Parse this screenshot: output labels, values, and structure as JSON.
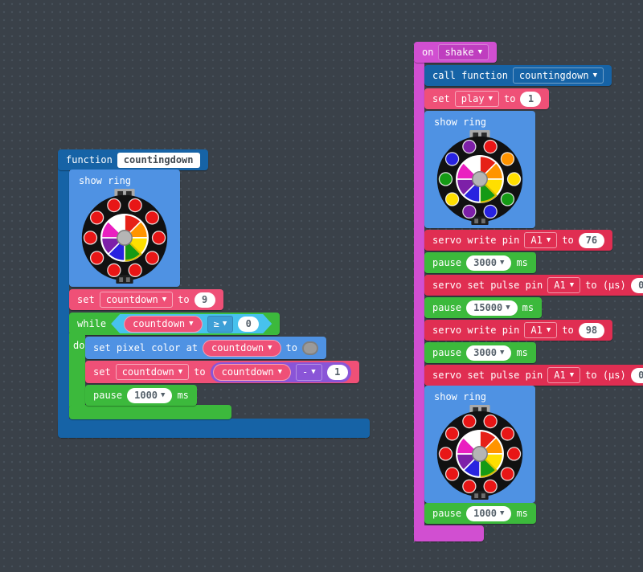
{
  "colors": {
    "function_blue": "#1663a6",
    "light_blue": "#4f92e3",
    "variables_pink": "#ef5077",
    "loops_green": "#3cb93c",
    "logic_cyan": "#47c2ee",
    "logic_dd_cyan": "#3d9fd6",
    "math_purple": "#8a55d7",
    "servo_crimson": "#e02e52",
    "input_magenta": "#d14fd1",
    "input_dd_magenta": "#bf3ebf"
  },
  "left_stack": {
    "function_def": {
      "keyword": "function",
      "name": "countingdown"
    },
    "show_ring": {
      "label": "show ring"
    },
    "set_countdown": {
      "set": "set",
      "var": "countdown",
      "to": "to",
      "value": "9"
    },
    "while_block": {
      "keyword": "while",
      "do_label": "do",
      "condition": {
        "var": "countdown",
        "op": "≥",
        "value": "0"
      }
    },
    "set_pixel": {
      "label": "set pixel color at",
      "var": "countdown",
      "to": "to"
    },
    "set_countdown_expr": {
      "set": "set",
      "var": "countdown",
      "to": "to",
      "expr": {
        "var": "countdown",
        "op": "-",
        "value": "1"
      }
    },
    "pause": {
      "label": "pause",
      "value": "1000",
      "unit": "ms"
    }
  },
  "right_stack": {
    "on_shake": {
      "keyword": "on",
      "event": "shake"
    },
    "call_function": {
      "label": "call function",
      "name": "countingdown"
    },
    "set_play": {
      "set": "set",
      "var": "play",
      "to": "to",
      "value": "1"
    },
    "servo_write_1": {
      "label": "servo write pin",
      "pin": "A1",
      "to": "to",
      "value": "76"
    },
    "pause_1": {
      "label": "pause",
      "value": "3000",
      "unit": "ms"
    },
    "servo_pulse_1": {
      "label": "servo set pulse pin",
      "pin": "A1",
      "to": "to (µs)",
      "value": "0"
    },
    "pause_2": {
      "label": "pause",
      "value": "15000",
      "unit": "ms"
    },
    "servo_write_2": {
      "label": "servo write pin",
      "pin": "A1",
      "to": "to",
      "value": "98"
    },
    "pause_3": {
      "label": "pause",
      "value": "3000",
      "unit": "ms"
    },
    "servo_pulse_2": {
      "label": "servo set pulse pin",
      "pin": "A1",
      "to": "to (µs)",
      "value": "0"
    },
    "pause_4": {
      "label": "pause",
      "value": "1000",
      "unit": "ms"
    }
  },
  "rings": {
    "board_color": "#111111",
    "hub_color": "#b5b5b5",
    "highlight_color": "#d8c000",
    "wheel_highlight_index": 3,
    "wheel_colors": [
      "#e62117",
      "#ff9400",
      "#ffdf00",
      "#159a15",
      "#2823e0",
      "#7d20a8",
      "#ea1fc0",
      "#ffffff"
    ],
    "instances": {
      "left": {
        "label": "show ring",
        "leds": [
          "#e81616",
          "#e81616",
          "#e81616",
          "#e81616",
          "#e81616",
          "#e81616",
          "#e81616",
          "#e81616",
          "#e81616",
          "#e81616"
        ]
      },
      "right_top": {
        "label": "show ring",
        "leds": [
          "#e81616",
          "#ff9400",
          "#ffdf00",
          "#159a15",
          "#2823e0",
          "#7d20a8",
          "#ffdf00",
          "#159a15",
          "#2823e0",
          "#7d20a8"
        ]
      },
      "right_bottom": {
        "label": "show ring",
        "leds": [
          "#e81616",
          "#e81616",
          "#e81616",
          "#e81616",
          "#e81616",
          "#e81616",
          "#e81616",
          "#e81616",
          "#e81616",
          "#e81616"
        ]
      }
    }
  }
}
